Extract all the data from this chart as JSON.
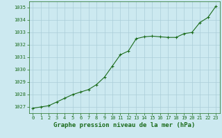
{
  "x": [
    0,
    1,
    2,
    3,
    4,
    5,
    6,
    7,
    8,
    9,
    10,
    11,
    12,
    13,
    14,
    15,
    16,
    17,
    18,
    19,
    20,
    21,
    22,
    23
  ],
  "y": [
    1026.9,
    1027.0,
    1027.1,
    1027.4,
    1027.7,
    1028.0,
    1028.2,
    1028.4,
    1028.8,
    1029.4,
    1030.3,
    1031.2,
    1031.5,
    1032.5,
    1032.65,
    1032.7,
    1032.65,
    1032.6,
    1032.6,
    1032.9,
    1033.0,
    1033.8,
    1034.2,
    1035.1
  ],
  "line_color": "#1a6b1a",
  "marker": "+",
  "marker_size": 3,
  "bg_color": "#cce9f0",
  "grid_color": "#aacdd8",
  "xlabel": "Graphe pression niveau de la mer (hPa)",
  "xlabel_color": "#1a6b1a",
  "tick_color": "#1a6b1a",
  "ylim": [
    1026.5,
    1035.5
  ],
  "yticks": [
    1027,
    1028,
    1029,
    1030,
    1031,
    1032,
    1033,
    1034,
    1035
  ],
  "xlim": [
    -0.5,
    23.5
  ],
  "xticks": [
    0,
    1,
    2,
    3,
    4,
    5,
    6,
    7,
    8,
    9,
    10,
    11,
    12,
    13,
    14,
    15,
    16,
    17,
    18,
    19,
    20,
    21,
    22,
    23
  ],
  "tick_fontsize": 5.0,
  "xlabel_fontsize": 6.5,
  "spine_color": "#1a6b1a",
  "line_width": 0.8,
  "marker_edge_width": 0.8
}
